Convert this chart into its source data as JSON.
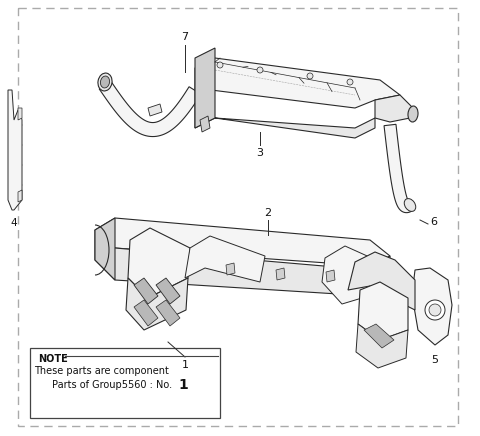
{
  "background_color": "#ffffff",
  "line_color": "#2a2a2a",
  "fill_light": "#f5f5f5",
  "fill_mid": "#e8e8e8",
  "fill_dark": "#d0d0d0",
  "fill_darker": "#b8b8b8",
  "note_text_1": "NOTE",
  "note_text_2": "These parts are component",
  "note_text_3": "Parts of Group5560 : No.",
  "note_text_4": "1",
  "figsize": [
    4.8,
    4.36
  ],
  "dpi": 100
}
